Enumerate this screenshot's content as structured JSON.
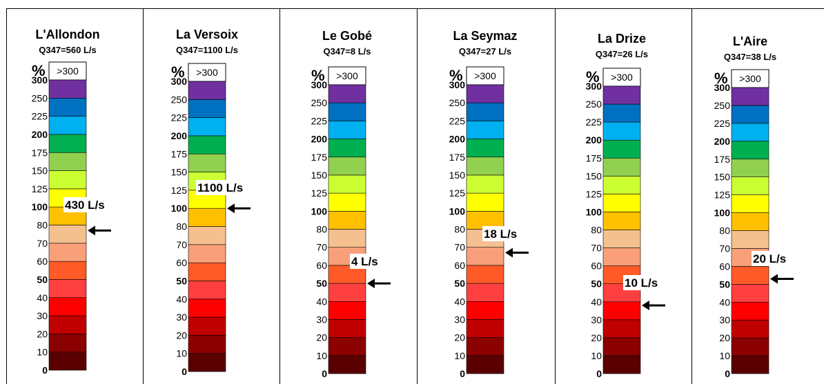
{
  "colors": {
    "scale": [
      "#5a0000",
      "#8b0000",
      "#c00000",
      "#ff0000",
      "#ff4040",
      "#ff5a28",
      "#f9a07a",
      "#f4c090",
      "#ffc000",
      "#ffff00",
      "#ccff33",
      "#92d050",
      "#00b050",
      "#00b0f0",
      "#0070c0",
      "#7030a0"
    ],
    "divider": "#000000",
    "arrow": "#000000"
  },
  "icons": {
    "marker": "left-arrow-icon"
  },
  "chart_data": [
    {
      "type": "gauge",
      "title": "L'Allondon",
      "subtitle": "Q347=560 L/s",
      "unit": "%",
      "top_label": ">300",
      "levels": [
        0,
        10,
        20,
        30,
        40,
        50,
        60,
        70,
        80,
        100,
        125,
        150,
        175,
        200,
        225,
        250,
        300
      ],
      "bold_levels": [
        0,
        50,
        100,
        200,
        300
      ],
      "value_label": "430 L/s",
      "marker_percent": 77
    },
    {
      "type": "gauge",
      "title": "La Versoix",
      "subtitle": "Q347=1100 L/s",
      "unit": "%",
      "top_label": ">300",
      "levels": [
        0,
        10,
        20,
        30,
        40,
        50,
        60,
        70,
        80,
        100,
        125,
        150,
        175,
        200,
        225,
        250,
        300
      ],
      "bold_levels": [
        0,
        50,
        100,
        200,
        300
      ],
      "value_label": "1100 L/s",
      "marker_percent": 100
    },
    {
      "type": "gauge",
      "title": "Le Gobé",
      "subtitle": "Q347=8 L/s",
      "unit": "%",
      "top_label": ">300",
      "levels": [
        0,
        10,
        20,
        30,
        40,
        50,
        60,
        70,
        80,
        100,
        125,
        150,
        175,
        200,
        225,
        250,
        300
      ],
      "bold_levels": [
        0,
        50,
        100,
        200,
        300
      ],
      "value_label": "4 L/s",
      "marker_percent": 50
    },
    {
      "type": "gauge",
      "title": "La Seymaz",
      "subtitle": "Q347=27 L/s",
      "unit": "%",
      "top_label": ">300",
      "levels": [
        0,
        10,
        20,
        30,
        40,
        50,
        60,
        70,
        80,
        100,
        125,
        150,
        175,
        200,
        225,
        250,
        300
      ],
      "bold_levels": [
        0,
        50,
        100,
        200,
        300
      ],
      "value_label": "18 L/s",
      "marker_percent": 67
    },
    {
      "type": "gauge",
      "title": "La Drize",
      "subtitle": "Q347=26 L/s",
      "unit": "%",
      "top_label": ">300",
      "levels": [
        0,
        10,
        20,
        30,
        40,
        50,
        60,
        70,
        80,
        100,
        125,
        150,
        175,
        200,
        225,
        250,
        300
      ],
      "bold_levels": [
        0,
        50,
        100,
        200,
        300
      ],
      "value_label": "10 L/s",
      "marker_percent": 38
    },
    {
      "type": "gauge",
      "title": "L'Aire",
      "subtitle": "Q347=38 L/s",
      "unit": "%",
      "top_label": ">300",
      "levels": [
        0,
        10,
        20,
        30,
        40,
        50,
        60,
        70,
        80,
        100,
        125,
        150,
        175,
        200,
        225,
        250,
        300
      ],
      "bold_levels": [
        0,
        50,
        100,
        200,
        300
      ],
      "value_label": "20 L/s",
      "marker_percent": 53
    }
  ]
}
